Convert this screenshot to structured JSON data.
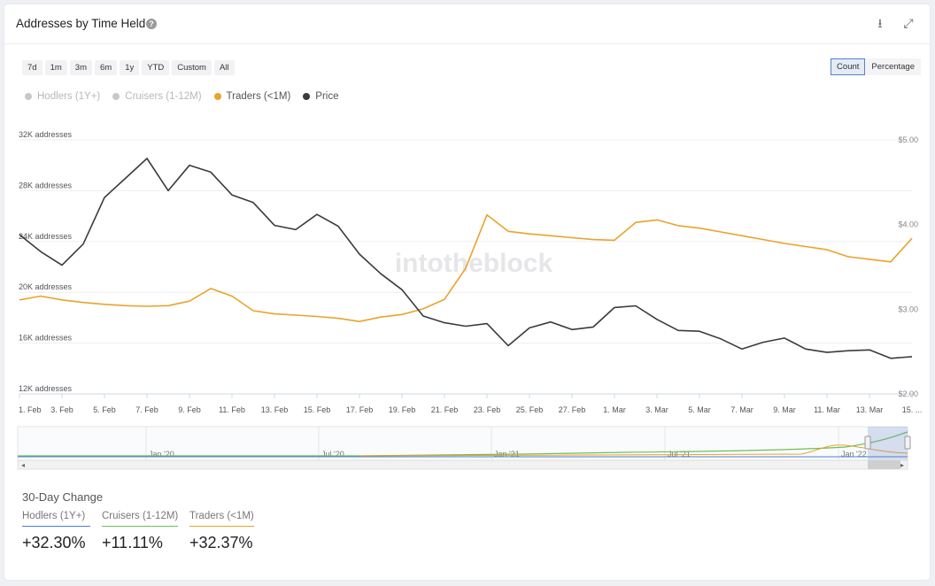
{
  "header": {
    "title": "Addresses by Time Held",
    "help_glyph": "?",
    "download_glyph": "⭳",
    "expand_glyph": "⤢"
  },
  "ranges": [
    "7d",
    "1m",
    "3m",
    "6m",
    "1y",
    "YTD",
    "Custom",
    "All"
  ],
  "modes": {
    "count": "Count",
    "percentage": "Percentage",
    "active": "Count"
  },
  "legend": [
    {
      "label": "Hodlers (1Y+)",
      "color": "#c8c8c8",
      "active": false
    },
    {
      "label": "Cruisers (1-12M)",
      "color": "#c8c8c8",
      "active": false
    },
    {
      "label": "Traders (<1M)",
      "color": "#eaa32c",
      "active": true
    },
    {
      "label": "Price",
      "color": "#3a3b40",
      "active": true
    }
  ],
  "watermark": "intotheblock",
  "chart_data": {
    "type": "line",
    "x": [
      "1. Feb",
      "2. Feb",
      "3. Feb",
      "4. Feb",
      "5. Feb",
      "6. Feb",
      "7. Feb",
      "8. Feb",
      "9. Feb",
      "10. Feb",
      "11. Feb",
      "12. Feb",
      "13. Feb",
      "14. Feb",
      "15. Feb",
      "16. Feb",
      "17. Feb",
      "18. Feb",
      "19. Feb",
      "20. Feb",
      "21. Feb",
      "22. Feb",
      "23. Feb",
      "24. Feb",
      "25. Feb",
      "26. Feb",
      "27. Feb",
      "28. Feb",
      "1. Mar",
      "2. Mar",
      "3. Mar",
      "4. Mar",
      "5. Mar",
      "6. Mar",
      "7. Mar",
      "8. Mar",
      "9. Mar",
      "10. Mar",
      "11. Mar",
      "12. Mar",
      "13. Mar",
      "14. Mar",
      "15. Mar"
    ],
    "x_tick_labels": [
      "1. Feb",
      "3. Feb",
      "5. Feb",
      "7. Feb",
      "9. Feb",
      "11. Feb",
      "13. Feb",
      "15. Feb",
      "17. Feb",
      "19. Feb",
      "21. Feb",
      "23. Feb",
      "25. Feb",
      "27. Feb",
      "1. Mar",
      "3. Mar",
      "5. Mar",
      "7. Mar",
      "9. Mar",
      "11. Mar",
      "13. Mar",
      "15. ..."
    ],
    "series": [
      {
        "name": "Traders (<1M)",
        "axis": "left",
        "color": "#eaa32c",
        "values": [
          19400,
          19700,
          19400,
          19200,
          19050,
          18950,
          18900,
          18950,
          19300,
          20300,
          19700,
          18550,
          18300,
          18200,
          18100,
          17950,
          17700,
          18050,
          18250,
          18700,
          19450,
          21900,
          26100,
          24800,
          24600,
          24450,
          24300,
          24150,
          24100,
          25500,
          25700,
          25250,
          25050,
          24750,
          24450,
          24150,
          23850,
          23600,
          23350,
          22800,
          22600,
          22400,
          24250
        ]
      },
      {
        "name": "Price",
        "axis": "right",
        "color": "#3a3b40",
        "values": [
          3.88,
          3.68,
          3.52,
          3.77,
          4.32,
          4.55,
          4.78,
          4.4,
          4.7,
          4.62,
          4.35,
          4.26,
          3.99,
          3.94,
          4.12,
          3.98,
          3.65,
          3.42,
          3.23,
          2.92,
          2.84,
          2.8,
          2.83,
          2.57,
          2.78,
          2.85,
          2.76,
          2.79,
          3.02,
          3.04,
          2.88,
          2.75,
          2.74,
          2.65,
          2.53,
          2.61,
          2.66,
          2.53,
          2.49,
          2.51,
          2.52,
          2.42,
          2.44
        ]
      }
    ],
    "y_left": {
      "ticks": [
        "32K addresses",
        "28K addresses",
        "24K addresses",
        "20K addresses",
        "16K addresses",
        "12K addresses"
      ],
      "range": [
        12000,
        32000
      ]
    },
    "y_right": {
      "ticks": [
        "$5.00",
        "$4.00",
        "$3.00",
        "$2.00"
      ],
      "range": [
        2.0,
        5.0
      ]
    },
    "navigator": {
      "labels": [
        "Jan '20",
        "Jul '20",
        "Jan '21",
        "Jul '21",
        "Jan '22"
      ]
    }
  },
  "changes": {
    "title": "30-Day Change",
    "items": [
      {
        "label": "Hodlers (1Y+)",
        "value": "+32.30%",
        "color": "#4a7fd4"
      },
      {
        "label": "Cruisers (1-12M)",
        "value": "+11.11%",
        "color": "#6cbf5a"
      },
      {
        "label": "Traders (<1M)",
        "value": "+32.37%",
        "color": "#eaa32c"
      }
    ]
  }
}
